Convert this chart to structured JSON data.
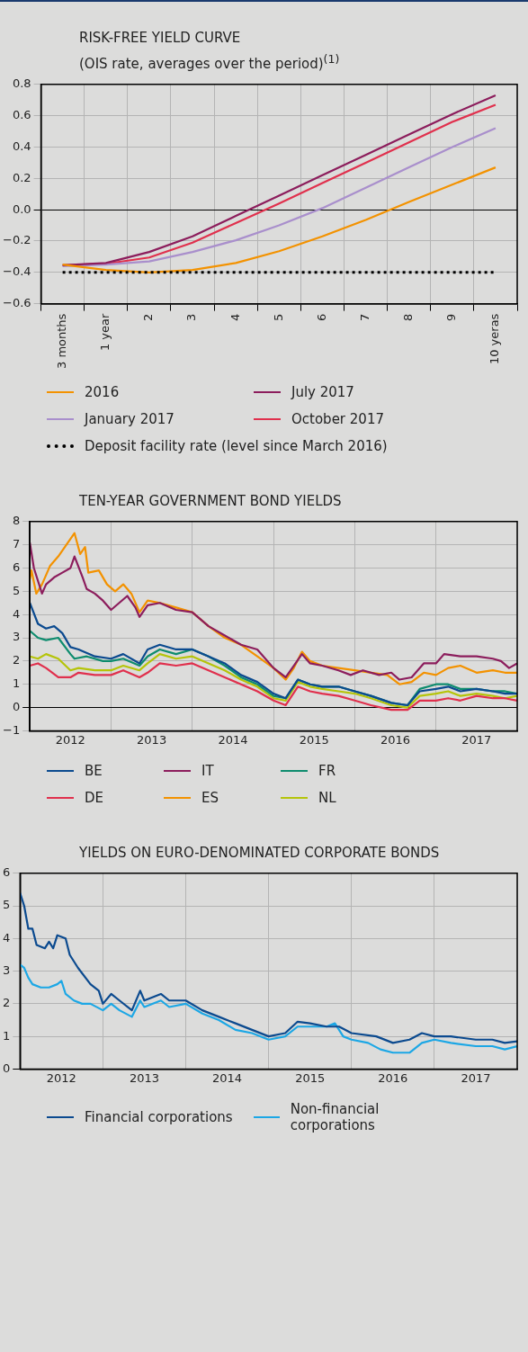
{
  "chart_data": [
    {
      "type": "line",
      "title": "RISK-FREE YIELD CURVE",
      "subtitle": "(OIS rate, averages over the period)$^{(1)}$",
      "categories": [
        "3 months",
        "1 year",
        "2",
        "3",
        "4",
        "5",
        "6",
        "7",
        "8",
        "9",
        "10 yeras"
      ],
      "series": [
        {
          "name": "2016",
          "color": "#f39200",
          "values": [
            -0.35,
            -0.385,
            -0.4,
            -0.385,
            -0.34,
            -0.265,
            -0.17,
            -0.065,
            0.05,
            0.16,
            0.27
          ]
        },
        {
          "name": "July 2017",
          "color": "#8c1d5c",
          "values": [
            -0.355,
            -0.34,
            -0.27,
            -0.17,
            -0.04,
            0.09,
            0.22,
            0.35,
            0.48,
            0.61,
            0.73
          ]
        },
        {
          "name": "January 2017",
          "color": "#a98fcc",
          "values": [
            -0.36,
            -0.35,
            -0.33,
            -0.27,
            -0.195,
            -0.1,
            0.01,
            0.14,
            0.27,
            0.4,
            0.52
          ]
        },
        {
          "name": "October 2017",
          "color": "#e0304d",
          "values": [
            -0.355,
            -0.345,
            -0.305,
            -0.21,
            -0.085,
            0.04,
            0.17,
            0.3,
            0.43,
            0.56,
            0.67
          ]
        },
        {
          "name": "Deposit facility rate (level since March 2016)",
          "color": "#000000",
          "line_style": "dotted",
          "values": [
            -0.4,
            -0.4,
            -0.4,
            -0.4,
            -0.4,
            -0.4,
            -0.4,
            -0.4,
            -0.4,
            -0.4,
            -0.4
          ]
        }
      ],
      "ylim": [
        -0.6,
        0.8
      ],
      "yticks": [
        {
          "value": -0.6,
          "label": "−0.6"
        },
        {
          "value": -0.4,
          "label": "−0.4"
        },
        {
          "value": -0.2,
          "label": "−0.2"
        },
        {
          "value": 0,
          "label": "0.0"
        },
        0.2,
        0.4,
        0.6,
        0.8
      ],
      "grid": true,
      "legend": "bottom",
      "line_style": "solid"
    },
    {
      "type": "line",
      "title": "TEN-YEAR GOVERNMENT BOND YIELDS",
      "series": [
        {
          "name": "BE",
          "color": "#0b4a8f",
          "x": [
            2012.0,
            2012.1,
            2012.2,
            2012.3,
            2012.4,
            2012.5,
            2012.6,
            2012.8,
            2013.0,
            2013.15,
            2013.35,
            2013.45,
            2013.6,
            2013.8,
            2014.0,
            2014.2,
            2014.4,
            2014.6,
            2014.8,
            2015.0,
            2015.15,
            2015.3,
            2015.45,
            2015.6,
            2015.8,
            2016.0,
            2016.2,
            2016.45,
            2016.65,
            2016.8,
            2017.0,
            2017.15,
            2017.3,
            2017.5,
            2017.7,
            2017.85,
            2018.0
          ],
          "values": [
            4.5,
            3.6,
            3.4,
            3.5,
            3.2,
            2.6,
            2.5,
            2.2,
            2.1,
            2.3,
            1.9,
            2.5,
            2.7,
            2.5,
            2.5,
            2.2,
            1.9,
            1.4,
            1.1,
            0.6,
            0.4,
            1.2,
            1.0,
            0.9,
            0.9,
            0.7,
            0.5,
            0.2,
            0.1,
            0.7,
            0.8,
            0.9,
            0.7,
            0.8,
            0.7,
            0.6,
            0.6
          ]
        },
        {
          "name": "IT",
          "color": "#8c1d5c",
          "x": [
            2012.0,
            2012.05,
            2012.15,
            2012.2,
            2012.3,
            2012.4,
            2012.5,
            2012.55,
            2012.65,
            2012.7,
            2012.8,
            2012.9,
            2013.0,
            2013.1,
            2013.2,
            2013.3,
            2013.35,
            2013.45,
            2013.6,
            2013.8,
            2014.0,
            2014.2,
            2014.4,
            2014.6,
            2014.8,
            2015.0,
            2015.15,
            2015.25,
            2015.35,
            2015.45,
            2015.6,
            2015.8,
            2015.95,
            2016.1,
            2016.3,
            2016.45,
            2016.55,
            2016.7,
            2016.85,
            2017.0,
            2017.1,
            2017.3,
            2017.5,
            2017.7,
            2017.8,
            2017.9,
            2018.0
          ],
          "values": [
            7.1,
            6.0,
            4.9,
            5.3,
            5.6,
            5.8,
            6.0,
            6.5,
            5.6,
            5.1,
            4.9,
            4.6,
            4.2,
            4.5,
            4.8,
            4.3,
            3.9,
            4.4,
            4.5,
            4.2,
            4.1,
            3.5,
            3.1,
            2.7,
            2.5,
            1.7,
            1.3,
            1.8,
            2.3,
            1.9,
            1.8,
            1.6,
            1.4,
            1.6,
            1.4,
            1.5,
            1.2,
            1.3,
            1.9,
            1.9,
            2.3,
            2.2,
            2.2,
            2.1,
            2.0,
            1.7,
            1.9
          ]
        },
        {
          "name": "FR",
          "color": "#0e8c6e",
          "x": [
            2012.0,
            2012.1,
            2012.2,
            2012.35,
            2012.5,
            2012.55,
            2012.7,
            2012.9,
            2013.0,
            2013.15,
            2013.35,
            2013.45,
            2013.6,
            2013.8,
            2014.0,
            2014.2,
            2014.4,
            2014.6,
            2014.8,
            2015.0,
            2015.15,
            2015.3,
            2015.45,
            2015.6,
            2015.8,
            2016.0,
            2016.2,
            2016.45,
            2016.65,
            2016.8,
            2017.0,
            2017.15,
            2017.3,
            2017.5,
            2017.7,
            2017.85,
            2018.0
          ],
          "values": [
            3.3,
            3.0,
            2.9,
            3.0,
            2.3,
            2.1,
            2.2,
            2.0,
            2.0,
            2.1,
            1.8,
            2.2,
            2.5,
            2.3,
            2.5,
            2.2,
            1.8,
            1.3,
            1.0,
            0.5,
            0.4,
            1.2,
            1.0,
            0.9,
            0.9,
            0.7,
            0.5,
            0.2,
            0.1,
            0.8,
            1.0,
            1.0,
            0.8,
            0.8,
            0.7,
            0.7,
            0.6
          ]
        },
        {
          "name": "DE",
          "color": "#e0304d",
          "x": [
            2012.0,
            2012.1,
            2012.2,
            2012.35,
            2012.5,
            2012.6,
            2012.8,
            2013.0,
            2013.15,
            2013.35,
            2013.45,
            2013.6,
            2013.8,
            2014.0,
            2014.2,
            2014.4,
            2014.6,
            2014.8,
            2015.0,
            2015.15,
            2015.3,
            2015.45,
            2015.6,
            2015.8,
            2016.0,
            2016.2,
            2016.45,
            2016.65,
            2016.8,
            2017.0,
            2017.15,
            2017.3,
            2017.5,
            2017.7,
            2017.85,
            2018.0
          ],
          "values": [
            1.8,
            1.9,
            1.7,
            1.3,
            1.3,
            1.5,
            1.4,
            1.4,
            1.6,
            1.3,
            1.5,
            1.9,
            1.8,
            1.9,
            1.6,
            1.3,
            1.0,
            0.7,
            0.3,
            0.1,
            0.9,
            0.7,
            0.6,
            0.5,
            0.3,
            0.1,
            -0.1,
            -0.1,
            0.3,
            0.3,
            0.4,
            0.3,
            0.5,
            0.4,
            0.4,
            0.3
          ]
        },
        {
          "name": "ES",
          "color": "#f39200",
          "x": [
            2012.0,
            2012.02,
            2012.08,
            2012.15,
            2012.25,
            2012.35,
            2012.45,
            2012.55,
            2012.62,
            2012.68,
            2012.72,
            2012.85,
            2012.95,
            2013.05,
            2013.15,
            2013.25,
            2013.35,
            2013.45,
            2013.6,
            2013.8,
            2014.0,
            2014.2,
            2014.4,
            2014.6,
            2014.8,
            2015.0,
            2015.15,
            2015.25,
            2015.35,
            2015.45,
            2015.6,
            2015.8,
            2016.0,
            2016.2,
            2016.4,
            2016.55,
            2016.7,
            2016.85,
            2017.0,
            2017.15,
            2017.3,
            2017.5,
            2017.7,
            2017.85,
            2018.0
          ],
          "values": [
            5.5,
            5.9,
            4.9,
            5.3,
            6.1,
            6.5,
            7.0,
            7.5,
            6.6,
            6.9,
            5.8,
            5.9,
            5.3,
            5.0,
            5.3,
            4.9,
            4.1,
            4.6,
            4.5,
            4.3,
            4.1,
            3.5,
            3.0,
            2.7,
            2.2,
            1.7,
            1.2,
            1.7,
            2.4,
            2.0,
            1.8,
            1.7,
            1.6,
            1.5,
            1.4,
            1.0,
            1.1,
            1.5,
            1.4,
            1.7,
            1.8,
            1.5,
            1.6,
            1.5,
            1.5
          ]
        },
        {
          "name": "NL",
          "color": "#b5c40a",
          "x": [
            2012.0,
            2012.1,
            2012.2,
            2012.35,
            2012.5,
            2012.6,
            2012.8,
            2013.0,
            2013.15,
            2013.35,
            2013.45,
            2013.6,
            2013.8,
            2014.0,
            2014.2,
            2014.4,
            2014.6,
            2014.8,
            2015.0,
            2015.15,
            2015.3,
            2015.45,
            2015.6,
            2015.8,
            2016.0,
            2016.2,
            2016.45,
            2016.65,
            2016.8,
            2017.0,
            2017.15,
            2017.3,
            2017.5,
            2017.7,
            2017.85,
            2018.0
          ],
          "values": [
            2.2,
            2.1,
            2.3,
            2.1,
            1.6,
            1.7,
            1.6,
            1.6,
            1.8,
            1.6,
            1.9,
            2.3,
            2.1,
            2.2,
            1.9,
            1.6,
            1.2,
            0.9,
            0.4,
            0.3,
            1.1,
            0.9,
            0.8,
            0.7,
            0.6,
            0.4,
            0.1,
            0.0,
            0.5,
            0.6,
            0.7,
            0.5,
            0.6,
            0.5,
            0.4,
            0.5
          ]
        }
      ],
      "xlim": [
        2012,
        2018
      ],
      "xticks": [
        {
          "value": 2012,
          "label": null
        },
        {
          "value": 2012.5,
          "label": "2012"
        },
        {
          "value": 2013,
          "label": null
        },
        {
          "value": 2013.5,
          "label": "2013"
        },
        {
          "value": 2014,
          "label": null
        },
        {
          "value": 2014.5,
          "label": "2014"
        },
        {
          "value": 2015,
          "label": null
        },
        {
          "value": 2015.5,
          "label": "2015"
        },
        {
          "value": 2016,
          "label": null
        },
        {
          "value": 2016.5,
          "label": "2016"
        },
        {
          "value": 2017,
          "label": null
        },
        {
          "value": 2017.5,
          "label": "2017"
        },
        {
          "value": 2018,
          "label": null
        }
      ],
      "ylim": [
        -1,
        8
      ],
      "yticks": [
        {
          "value": -1,
          "label": "−1"
        },
        0,
        1,
        2,
        3,
        4,
        5,
        6,
        7,
        8
      ],
      "grid": true,
      "legend": "bottom"
    },
    {
      "type": "line",
      "title": "YIELDS ON EURO-DENOMINATED CORPORATE BONDS",
      "series": [
        {
          "name": "Financial corporations",
          "color": "#0b4a8f",
          "x": [
            2012.0,
            2012.05,
            2012.1,
            2012.15,
            2012.2,
            2012.3,
            2012.35,
            2012.4,
            2012.45,
            2012.55,
            2012.6,
            2012.7,
            2012.85,
            2012.95,
            2013.0,
            2013.1,
            2013.2,
            2013.35,
            2013.45,
            2013.5,
            2013.7,
            2013.8,
            2014.0,
            2014.2,
            2014.4,
            2014.6,
            2014.8,
            2015.0,
            2015.2,
            2015.35,
            2015.5,
            2015.7,
            2015.85,
            2016.0,
            2016.3,
            2016.5,
            2016.7,
            2016.85,
            2017.0,
            2017.2,
            2017.5,
            2017.7,
            2017.85,
            2018.0
          ],
          "values": [
            5.4,
            5.0,
            4.3,
            4.3,
            3.8,
            3.7,
            3.9,
            3.7,
            4.1,
            4.0,
            3.5,
            3.1,
            2.6,
            2.4,
            2.0,
            2.3,
            2.1,
            1.8,
            2.4,
            2.1,
            2.3,
            2.1,
            2.1,
            1.8,
            1.6,
            1.4,
            1.2,
            1.0,
            1.1,
            1.45,
            1.4,
            1.3,
            1.3,
            1.1,
            1.0,
            0.8,
            0.9,
            1.1,
            1.0,
            1.0,
            0.9,
            0.9,
            0.8,
            0.85
          ]
        },
        {
          "name": "Non-financial corporations",
          "color": "#1ca7e5",
          "x": [
            2012.0,
            2012.05,
            2012.1,
            2012.15,
            2012.25,
            2012.35,
            2012.45,
            2012.5,
            2012.55,
            2012.65,
            2012.75,
            2012.85,
            2013.0,
            2013.1,
            2013.2,
            2013.35,
            2013.45,
            2013.5,
            2013.7,
            2013.8,
            2014.0,
            2014.2,
            2014.4,
            2014.6,
            2014.8,
            2015.0,
            2015.2,
            2015.35,
            2015.5,
            2015.7,
            2015.8,
            2015.9,
            2016.0,
            2016.2,
            2016.35,
            2016.5,
            2016.7,
            2016.85,
            2017.0,
            2017.2,
            2017.5,
            2017.7,
            2017.85,
            2018.0
          ],
          "values": [
            3.2,
            3.1,
            2.8,
            2.6,
            2.5,
            2.5,
            2.6,
            2.7,
            2.3,
            2.1,
            2.0,
            2.0,
            1.8,
            2.0,
            1.8,
            1.6,
            2.1,
            1.9,
            2.1,
            1.9,
            2.0,
            1.7,
            1.5,
            1.2,
            1.1,
            0.9,
            1.0,
            1.3,
            1.3,
            1.3,
            1.4,
            1.0,
            0.9,
            0.8,
            0.6,
            0.5,
            0.5,
            0.8,
            0.9,
            0.8,
            0.7,
            0.7,
            0.6,
            0.7
          ]
        }
      ],
      "xlim": [
        2012,
        2018
      ],
      "xticks": [
        {
          "value": 2012,
          "label": null
        },
        {
          "value": 2012.5,
          "label": "2012"
        },
        {
          "value": 2013,
          "label": null
        },
        {
          "value": 2013.5,
          "label": "2013"
        },
        {
          "value": 2014,
          "label": null
        },
        {
          "value": 2014.5,
          "label": "2014"
        },
        {
          "value": 2015,
          "label": null
        },
        {
          "value": 2015.5,
          "label": "2015"
        },
        {
          "value": 2016,
          "label": null
        },
        {
          "value": 2016.5,
          "label": "2016"
        },
        {
          "value": 2017,
          "label": null
        },
        {
          "value": 2017.5,
          "label": "2017"
        },
        {
          "value": 2018,
          "label": null
        }
      ],
      "ylim": [
        0,
        6
      ],
      "yticks": [
        0,
        1,
        2,
        3,
        4,
        5,
        6
      ],
      "grid": true,
      "legend": "bottom"
    }
  ]
}
